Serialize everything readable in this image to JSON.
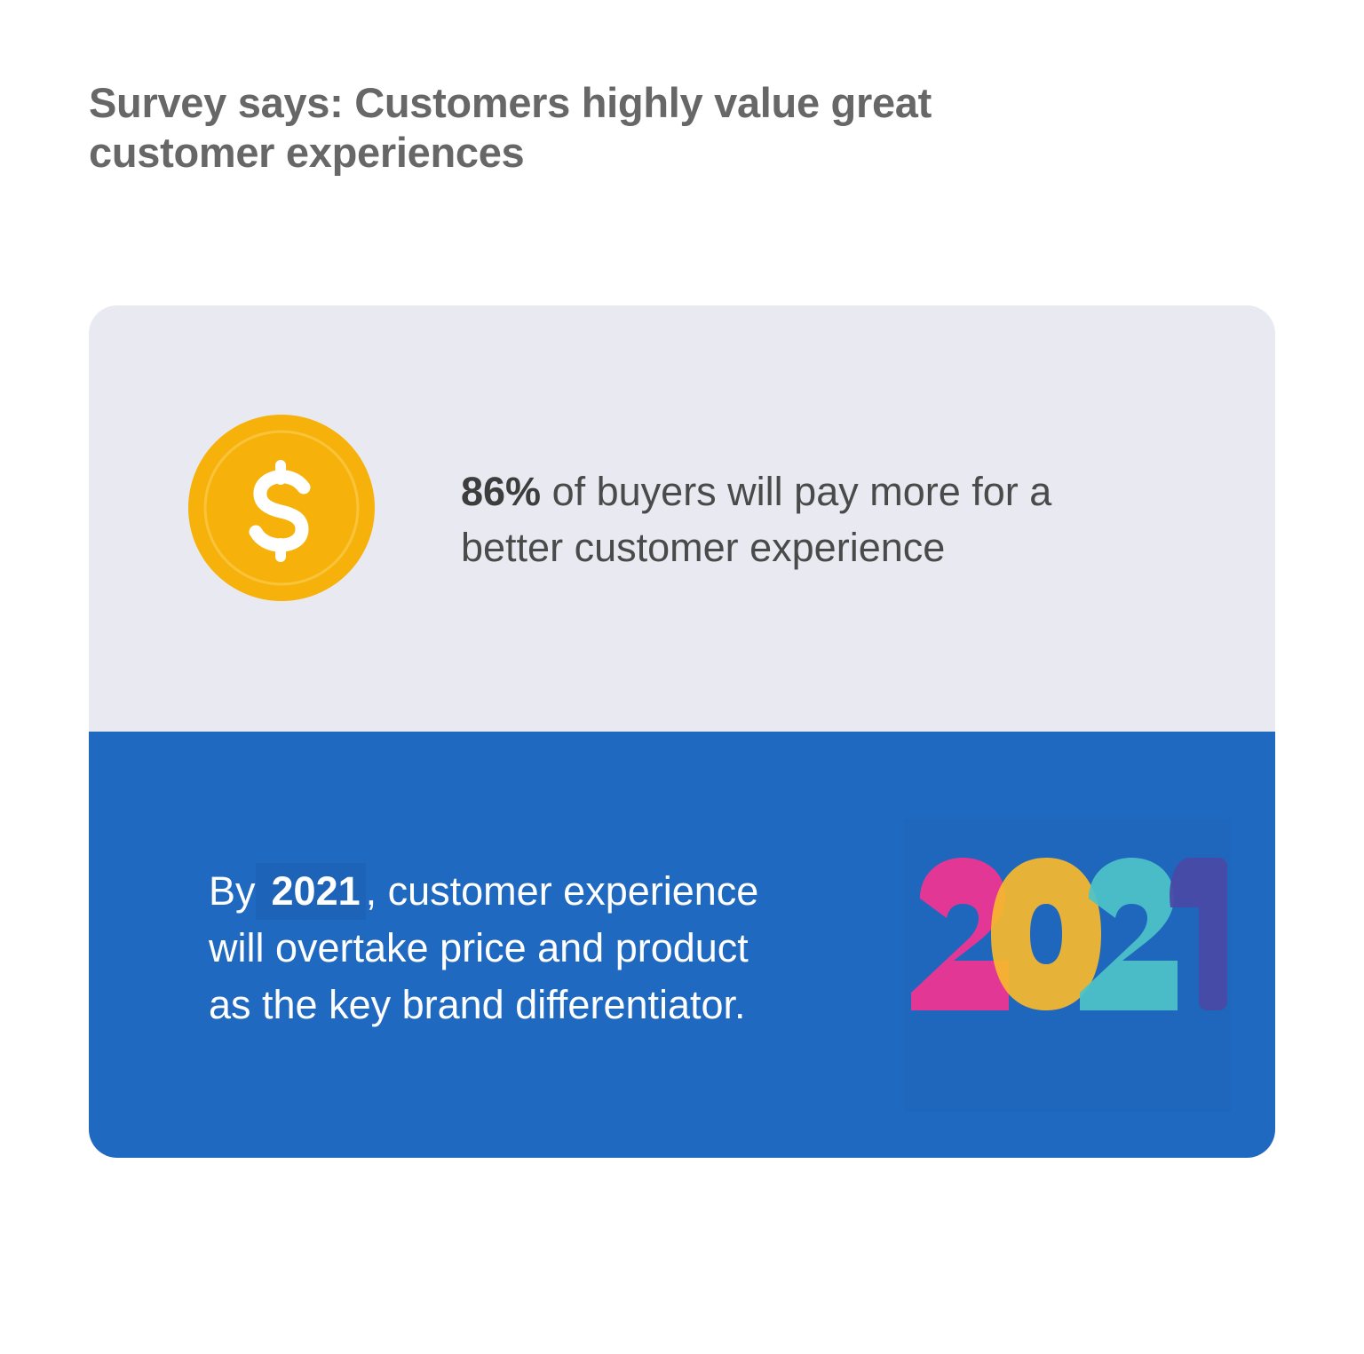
{
  "header": {
    "title_line1": "Survey says: Customers highly value great",
    "title_line2": "customer experiences"
  },
  "stat_panel": {
    "icon": "dollar-coin-icon",
    "highlight": "86%",
    "text_line1": " of buyers will pay more for a",
    "text_line2": "better customer experience"
  },
  "future_panel": {
    "prefix": "By",
    "year": "2021",
    "line1_rest": ", customer experience",
    "line2": "will overtake price and product",
    "line3": "as the key brand differentiator.",
    "art": "colorful-2021-icon",
    "art_digits": [
      "2",
      "0",
      "2",
      "1"
    ]
  },
  "colors": {
    "title": "#676767",
    "panel_light": "#e9e9f1",
    "panel_blue": "#2069c1",
    "coin": "#f7b10b",
    "digit_colors": [
      "#ee3593",
      "#f7ba2c",
      "#4ec3c9",
      "#4a4aa6"
    ]
  }
}
